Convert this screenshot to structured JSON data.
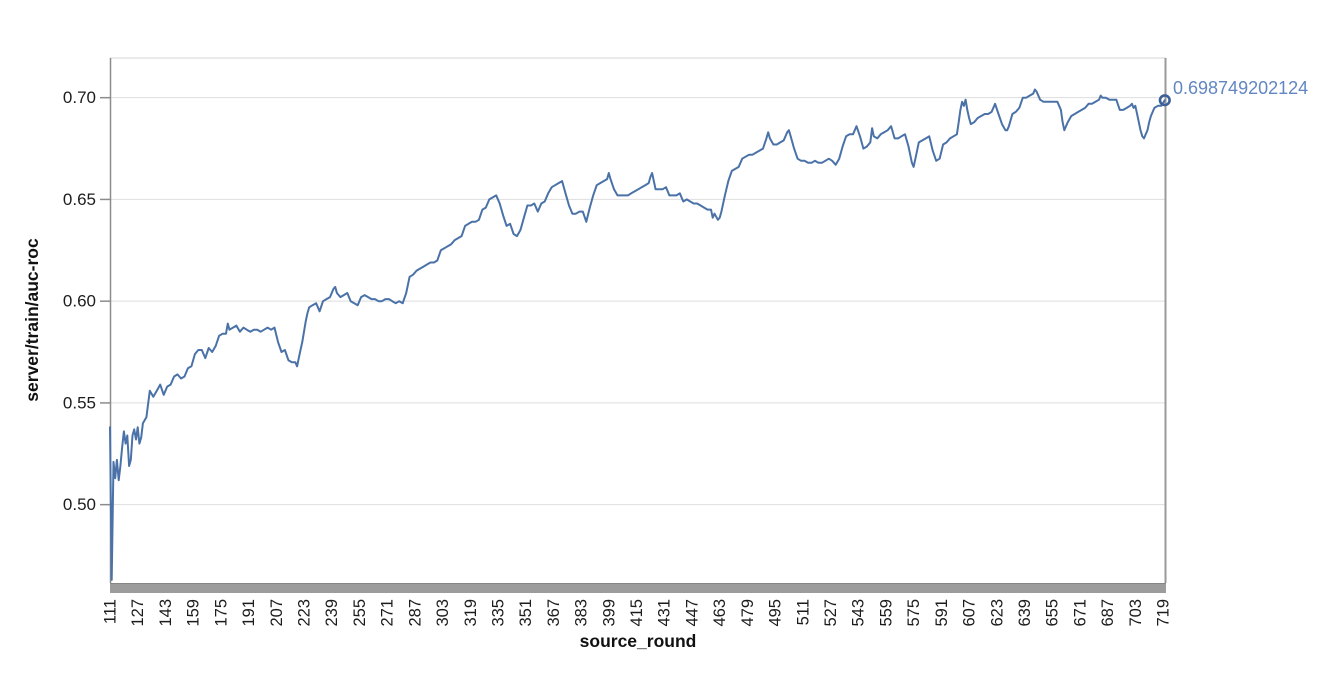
{
  "chart_data": {
    "type": "line",
    "title": "",
    "xlabel": "source_round",
    "ylabel": "server/train/auc-roc",
    "series_name": "server/train/auc-roc",
    "x_ticks": [
      111,
      127,
      143,
      159,
      175,
      191,
      207,
      223,
      239,
      255,
      271,
      287,
      303,
      319,
      335,
      351,
      367,
      383,
      399,
      415,
      431,
      447,
      463,
      479,
      495,
      511,
      527,
      543,
      559,
      575,
      591,
      607,
      623,
      639,
      655,
      671,
      687,
      703,
      719
    ],
    "y_ticks": [
      0.5,
      0.55,
      0.6,
      0.65,
      0.7
    ],
    "y_tick_labels": [
      "0.50",
      "0.55",
      "0.60",
      "0.65",
      "0.70"
    ],
    "xlim": [
      111,
      720.7
    ],
    "ylim": [
      0.4615,
      0.7195
    ],
    "grid": "horizontal",
    "legend_position": "none",
    "line_color": "#4a72a8",
    "marker_color": "#3d6098",
    "endpoint_label_color": "#6286c2",
    "endpoint_value": 0.698749202124,
    "endpoint_label": "0.698749202124",
    "points": [
      [
        111,
        0.538
      ],
      [
        112,
        0.463
      ],
      [
        113,
        0.521
      ],
      [
        114,
        0.513
      ],
      [
        115,
        0.522
      ],
      [
        116,
        0.512
      ],
      [
        117,
        0.519
      ],
      [
        118,
        0.528
      ],
      [
        119,
        0.536
      ],
      [
        120,
        0.53
      ],
      [
        121,
        0.534
      ],
      [
        122,
        0.519
      ],
      [
        123,
        0.522
      ],
      [
        124,
        0.534
      ],
      [
        125,
        0.537
      ],
      [
        126,
        0.532
      ],
      [
        127,
        0.538
      ],
      [
        128,
        0.53
      ],
      [
        129,
        0.533
      ],
      [
        130,
        0.54
      ],
      [
        132,
        0.543
      ],
      [
        134,
        0.556
      ],
      [
        136,
        0.553
      ],
      [
        138,
        0.556
      ],
      [
        140,
        0.559
      ],
      [
        142,
        0.554
      ],
      [
        144,
        0.558
      ],
      [
        146,
        0.559
      ],
      [
        148,
        0.563
      ],
      [
        150,
        0.564
      ],
      [
        152,
        0.562
      ],
      [
        154,
        0.563
      ],
      [
        156,
        0.567
      ],
      [
        158,
        0.568
      ],
      [
        160,
        0.574
      ],
      [
        162,
        0.576
      ],
      [
        164,
        0.576
      ],
      [
        166,
        0.572
      ],
      [
        168,
        0.577
      ],
      [
        170,
        0.575
      ],
      [
        172,
        0.578
      ],
      [
        174,
        0.583
      ],
      [
        176,
        0.584
      ],
      [
        178,
        0.584
      ],
      [
        179,
        0.589
      ],
      [
        180,
        0.586
      ],
      [
        182,
        0.587
      ],
      [
        184,
        0.588
      ],
      [
        186,
        0.585
      ],
      [
        188,
        0.587
      ],
      [
        190,
        0.586
      ],
      [
        192,
        0.585
      ],
      [
        194,
        0.586
      ],
      [
        196,
        0.586
      ],
      [
        198,
        0.585
      ],
      [
        200,
        0.586
      ],
      [
        202,
        0.587
      ],
      [
        204,
        0.586
      ],
      [
        206,
        0.587
      ],
      [
        208,
        0.58
      ],
      [
        210,
        0.575
      ],
      [
        212,
        0.576
      ],
      [
        214,
        0.571
      ],
      [
        216,
        0.57
      ],
      [
        218,
        0.57
      ],
      [
        219,
        0.568
      ],
      [
        220,
        0.572
      ],
      [
        221,
        0.576
      ],
      [
        222,
        0.58
      ],
      [
        223,
        0.585
      ],
      [
        224,
        0.59
      ],
      [
        225,
        0.594
      ],
      [
        226,
        0.597
      ],
      [
        228,
        0.598
      ],
      [
        230,
        0.599
      ],
      [
        232,
        0.595
      ],
      [
        234,
        0.6
      ],
      [
        236,
        0.601
      ],
      [
        238,
        0.602
      ],
      [
        240,
        0.606
      ],
      [
        241,
        0.607
      ],
      [
        242,
        0.604
      ],
      [
        244,
        0.602
      ],
      [
        246,
        0.603
      ],
      [
        248,
        0.604
      ],
      [
        250,
        0.6
      ],
      [
        252,
        0.599
      ],
      [
        254,
        0.598
      ],
      [
        256,
        0.602
      ],
      [
        258,
        0.603
      ],
      [
        260,
        0.602
      ],
      [
        262,
        0.601
      ],
      [
        264,
        0.601
      ],
      [
        266,
        0.6
      ],
      [
        268,
        0.6
      ],
      [
        270,
        0.601
      ],
      [
        272,
        0.601
      ],
      [
        274,
        0.6
      ],
      [
        276,
        0.599
      ],
      [
        278,
        0.6
      ],
      [
        280,
        0.599
      ],
      [
        282,
        0.604
      ],
      [
        284,
        0.612
      ],
      [
        286,
        0.613
      ],
      [
        288,
        0.615
      ],
      [
        290,
        0.616
      ],
      [
        292,
        0.617
      ],
      [
        294,
        0.618
      ],
      [
        296,
        0.619
      ],
      [
        298,
        0.619
      ],
      [
        300,
        0.62
      ],
      [
        302,
        0.625
      ],
      [
        304,
        0.626
      ],
      [
        306,
        0.627
      ],
      [
        308,
        0.628
      ],
      [
        310,
        0.63
      ],
      [
        312,
        0.631
      ],
      [
        314,
        0.632
      ],
      [
        316,
        0.637
      ],
      [
        318,
        0.638
      ],
      [
        320,
        0.639
      ],
      [
        322,
        0.639
      ],
      [
        324,
        0.64
      ],
      [
        326,
        0.645
      ],
      [
        328,
        0.646
      ],
      [
        330,
        0.65
      ],
      [
        332,
        0.651
      ],
      [
        334,
        0.652
      ],
      [
        336,
        0.648
      ],
      [
        338,
        0.642
      ],
      [
        340,
        0.637
      ],
      [
        342,
        0.638
      ],
      [
        344,
        0.633
      ],
      [
        346,
        0.632
      ],
      [
        348,
        0.635
      ],
      [
        350,
        0.641
      ],
      [
        352,
        0.647
      ],
      [
        354,
        0.647
      ],
      [
        356,
        0.648
      ],
      [
        358,
        0.644
      ],
      [
        360,
        0.648
      ],
      [
        362,
        0.649
      ],
      [
        364,
        0.653
      ],
      [
        366,
        0.656
      ],
      [
        368,
        0.657
      ],
      [
        370,
        0.658
      ],
      [
        372,
        0.659
      ],
      [
        374,
        0.653
      ],
      [
        376,
        0.647
      ],
      [
        378,
        0.643
      ],
      [
        380,
        0.643
      ],
      [
        382,
        0.644
      ],
      [
        384,
        0.644
      ],
      [
        386,
        0.639
      ],
      [
        388,
        0.646
      ],
      [
        390,
        0.652
      ],
      [
        392,
        0.657
      ],
      [
        394,
        0.658
      ],
      [
        396,
        0.659
      ],
      [
        398,
        0.66
      ],
      [
        399,
        0.663
      ],
      [
        400,
        0.66
      ],
      [
        402,
        0.655
      ],
      [
        404,
        0.652
      ],
      [
        406,
        0.652
      ],
      [
        408,
        0.652
      ],
      [
        410,
        0.652
      ],
      [
        412,
        0.653
      ],
      [
        414,
        0.654
      ],
      [
        416,
        0.655
      ],
      [
        418,
        0.656
      ],
      [
        420,
        0.657
      ],
      [
        422,
        0.658
      ],
      [
        423,
        0.661
      ],
      [
        424,
        0.663
      ],
      [
        426,
        0.655
      ],
      [
        428,
        0.655
      ],
      [
        430,
        0.655
      ],
      [
        432,
        0.656
      ],
      [
        434,
        0.652
      ],
      [
        436,
        0.652
      ],
      [
        438,
        0.652
      ],
      [
        440,
        0.653
      ],
      [
        442,
        0.649
      ],
      [
        444,
        0.65
      ],
      [
        446,
        0.649
      ],
      [
        448,
        0.648
      ],
      [
        450,
        0.648
      ],
      [
        452,
        0.647
      ],
      [
        454,
        0.646
      ],
      [
        456,
        0.645
      ],
      [
        458,
        0.645
      ],
      [
        459,
        0.641
      ],
      [
        460,
        0.643
      ],
      [
        462,
        0.64
      ],
      [
        463,
        0.641
      ],
      [
        464,
        0.644
      ],
      [
        466,
        0.652
      ],
      [
        468,
        0.659
      ],
      [
        470,
        0.664
      ],
      [
        472,
        0.665
      ],
      [
        474,
        0.666
      ],
      [
        476,
        0.67
      ],
      [
        478,
        0.671
      ],
      [
        480,
        0.672
      ],
      [
        482,
        0.672
      ],
      [
        484,
        0.673
      ],
      [
        486,
        0.674
      ],
      [
        488,
        0.675
      ],
      [
        490,
        0.68
      ],
      [
        491,
        0.683
      ],
      [
        492,
        0.68
      ],
      [
        494,
        0.677
      ],
      [
        496,
        0.677
      ],
      [
        498,
        0.678
      ],
      [
        500,
        0.679
      ],
      [
        502,
        0.683
      ],
      [
        503,
        0.684
      ],
      [
        504,
        0.681
      ],
      [
        506,
        0.675
      ],
      [
        508,
        0.67
      ],
      [
        510,
        0.669
      ],
      [
        512,
        0.669
      ],
      [
        514,
        0.668
      ],
      [
        516,
        0.668
      ],
      [
        518,
        0.669
      ],
      [
        520,
        0.668
      ],
      [
        522,
        0.668
      ],
      [
        524,
        0.669
      ],
      [
        526,
        0.67
      ],
      [
        528,
        0.669
      ],
      [
        530,
        0.667
      ],
      [
        532,
        0.67
      ],
      [
        534,
        0.676
      ],
      [
        536,
        0.681
      ],
      [
        538,
        0.682
      ],
      [
        540,
        0.682
      ],
      [
        542,
        0.686
      ],
      [
        544,
        0.681
      ],
      [
        546,
        0.675
      ],
      [
        548,
        0.676
      ],
      [
        550,
        0.678
      ],
      [
        551,
        0.685
      ],
      [
        552,
        0.681
      ],
      [
        554,
        0.68
      ],
      [
        556,
        0.682
      ],
      [
        558,
        0.683
      ],
      [
        560,
        0.684
      ],
      [
        562,
        0.686
      ],
      [
        564,
        0.68
      ],
      [
        566,
        0.68
      ],
      [
        568,
        0.681
      ],
      [
        570,
        0.682
      ],
      [
        572,
        0.676
      ],
      [
        574,
        0.668
      ],
      [
        575,
        0.666
      ],
      [
        576,
        0.67
      ],
      [
        578,
        0.678
      ],
      [
        580,
        0.679
      ],
      [
        582,
        0.68
      ],
      [
        584,
        0.681
      ],
      [
        586,
        0.674
      ],
      [
        588,
        0.669
      ],
      [
        590,
        0.67
      ],
      [
        592,
        0.677
      ],
      [
        594,
        0.678
      ],
      [
        596,
        0.68
      ],
      [
        598,
        0.681
      ],
      [
        600,
        0.682
      ],
      [
        601,
        0.688
      ],
      [
        602,
        0.694
      ],
      [
        603,
        0.698
      ],
      [
        604,
        0.696
      ],
      [
        605,
        0.699
      ],
      [
        606,
        0.694
      ],
      [
        607,
        0.69
      ],
      [
        608,
        0.687
      ],
      [
        610,
        0.688
      ],
      [
        612,
        0.69
      ],
      [
        614,
        0.691
      ],
      [
        616,
        0.692
      ],
      [
        618,
        0.692
      ],
      [
        620,
        0.693
      ],
      [
        622,
        0.697
      ],
      [
        624,
        0.692
      ],
      [
        626,
        0.687
      ],
      [
        628,
        0.684
      ],
      [
        629,
        0.684
      ],
      [
        630,
        0.686
      ],
      [
        632,
        0.692
      ],
      [
        634,
        0.693
      ],
      [
        636,
        0.695
      ],
      [
        638,
        0.7
      ],
      [
        640,
        0.7
      ],
      [
        642,
        0.701
      ],
      [
        644,
        0.702
      ],
      [
        645,
        0.704
      ],
      [
        646,
        0.703
      ],
      [
        648,
        0.699
      ],
      [
        650,
        0.698
      ],
      [
        652,
        0.698
      ],
      [
        654,
        0.698
      ],
      [
        656,
        0.698
      ],
      [
        658,
        0.698
      ],
      [
        660,
        0.694
      ],
      [
        661,
        0.688
      ],
      [
        662,
        0.684
      ],
      [
        664,
        0.688
      ],
      [
        666,
        0.691
      ],
      [
        668,
        0.692
      ],
      [
        670,
        0.693
      ],
      [
        672,
        0.694
      ],
      [
        674,
        0.695
      ],
      [
        676,
        0.697
      ],
      [
        678,
        0.697
      ],
      [
        680,
        0.698
      ],
      [
        682,
        0.699
      ],
      [
        683,
        0.701
      ],
      [
        684,
        0.7
      ],
      [
        686,
        0.7
      ],
      [
        688,
        0.699
      ],
      [
        690,
        0.699
      ],
      [
        692,
        0.699
      ],
      [
        694,
        0.694
      ],
      [
        696,
        0.694
      ],
      [
        698,
        0.695
      ],
      [
        700,
        0.696
      ],
      [
        701,
        0.697
      ],
      [
        702,
        0.695
      ],
      [
        703,
        0.696
      ],
      [
        704,
        0.692
      ],
      [
        705,
        0.688
      ],
      [
        706,
        0.684
      ],
      [
        707,
        0.681
      ],
      [
        708,
        0.68
      ],
      [
        709,
        0.682
      ],
      [
        710,
        0.684
      ],
      [
        711,
        0.688
      ],
      [
        712,
        0.691
      ],
      [
        714,
        0.695
      ],
      [
        716,
        0.696
      ],
      [
        718,
        0.696
      ],
      [
        720,
        0.698749202124
      ]
    ]
  }
}
